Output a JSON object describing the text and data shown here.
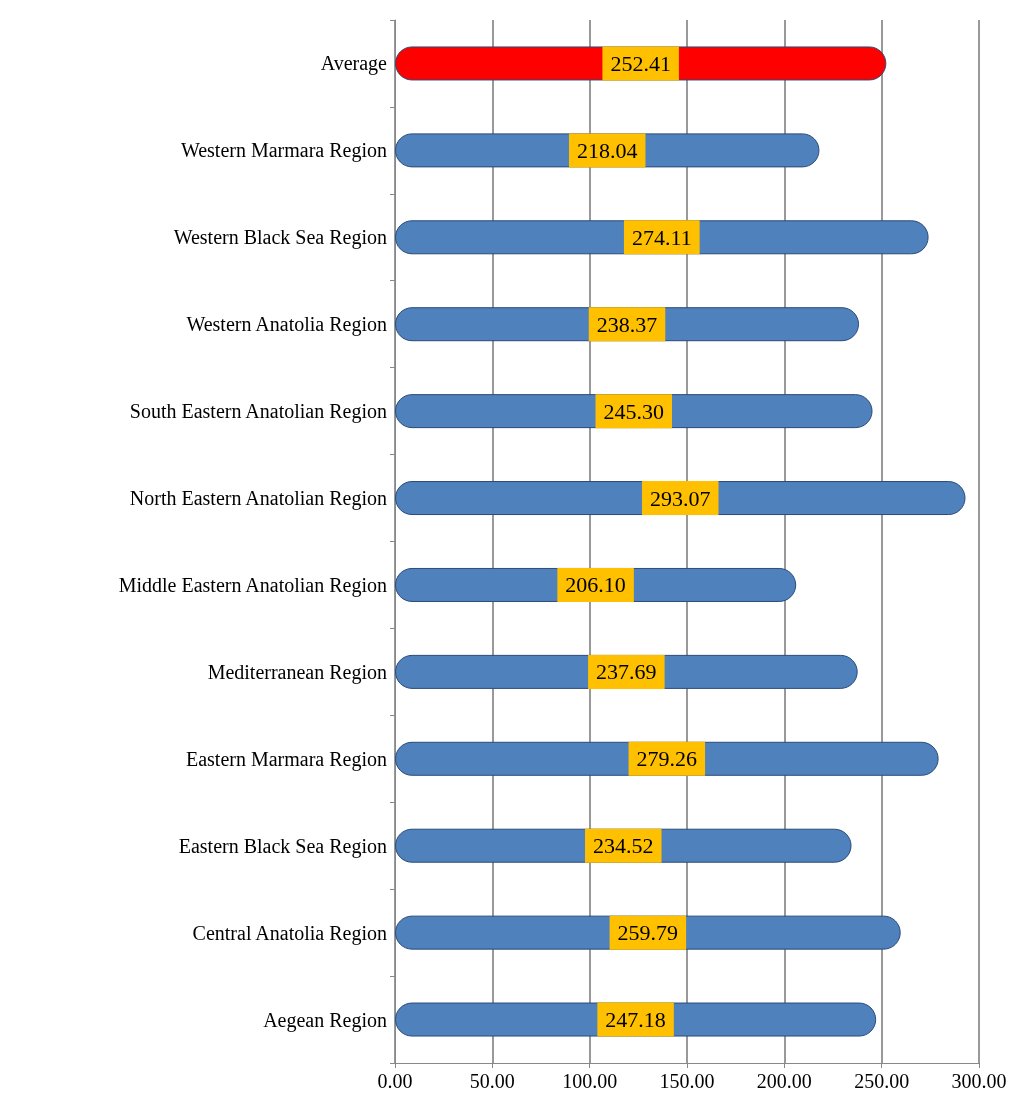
{
  "chart_data": {
    "type": "bar",
    "orientation": "horizontal",
    "categories": [
      "Average",
      "Western Marmara Region",
      "Western Black Sea Region",
      "Western Anatolia Region",
      "South Eastern Anatolian Region",
      "North Eastern Anatolian Region",
      "Middle Eastern Anatolian Region",
      "Mediterranean Region",
      "Eastern Marmara Region",
      "Eastern Black Sea Region",
      "Central Anatolia Region",
      "Aegean Region"
    ],
    "values": [
      252.41,
      218.04,
      274.11,
      238.37,
      245.3,
      293.07,
      206.1,
      237.69,
      279.26,
      234.52,
      259.79,
      247.18
    ],
    "value_labels": [
      "252.41",
      "218.04",
      "274.11",
      "238.37",
      "245.30",
      "293.07",
      "206.10",
      "237.69",
      "279.26",
      "234.52",
      "259.79",
      "247.18"
    ],
    "colors": [
      "#ff0000",
      "#4f81bd",
      "#4f81bd",
      "#4f81bd",
      "#4f81bd",
      "#4f81bd",
      "#4f81bd",
      "#4f81bd",
      "#4f81bd",
      "#4f81bd",
      "#4f81bd",
      "#4f81bd"
    ],
    "xlim": [
      0,
      300
    ],
    "xticks": [
      {
        "value": 0,
        "label": "0.00"
      },
      {
        "value": 50,
        "label": "50.00"
      },
      {
        "value": 100,
        "label": "100.00"
      },
      {
        "value": 150,
        "label": "150.00"
      },
      {
        "value": 200,
        "label": "200.00"
      },
      {
        "value": 250,
        "label": "250.00"
      },
      {
        "value": 300,
        "label": "300.00"
      }
    ],
    "grid": "x"
  }
}
